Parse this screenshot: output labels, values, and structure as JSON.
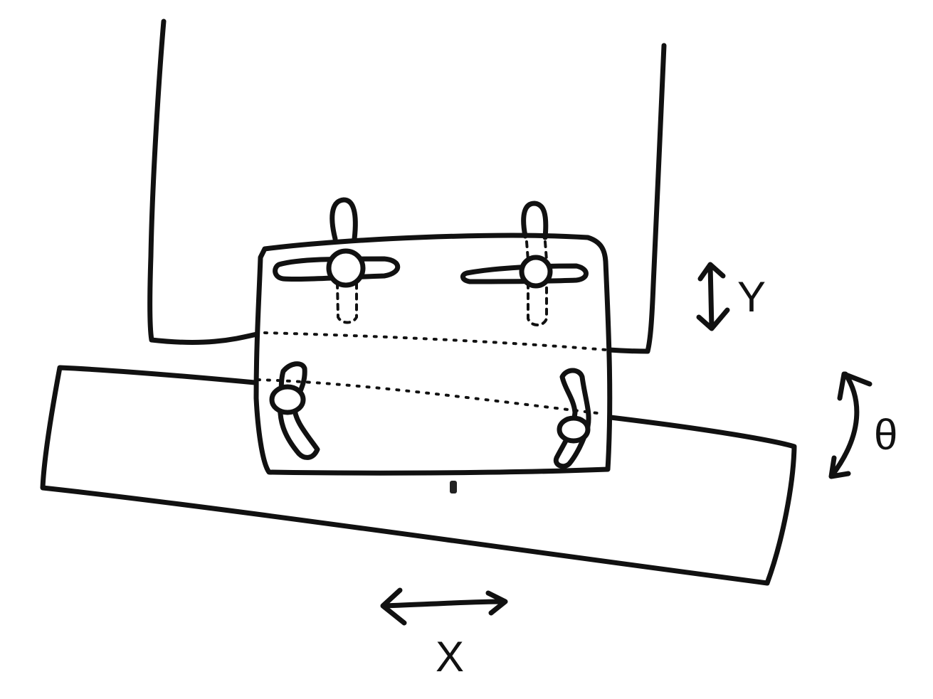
{
  "labels": {
    "y_axis": "Y",
    "theta": "θ",
    "x_axis": "X"
  }
}
